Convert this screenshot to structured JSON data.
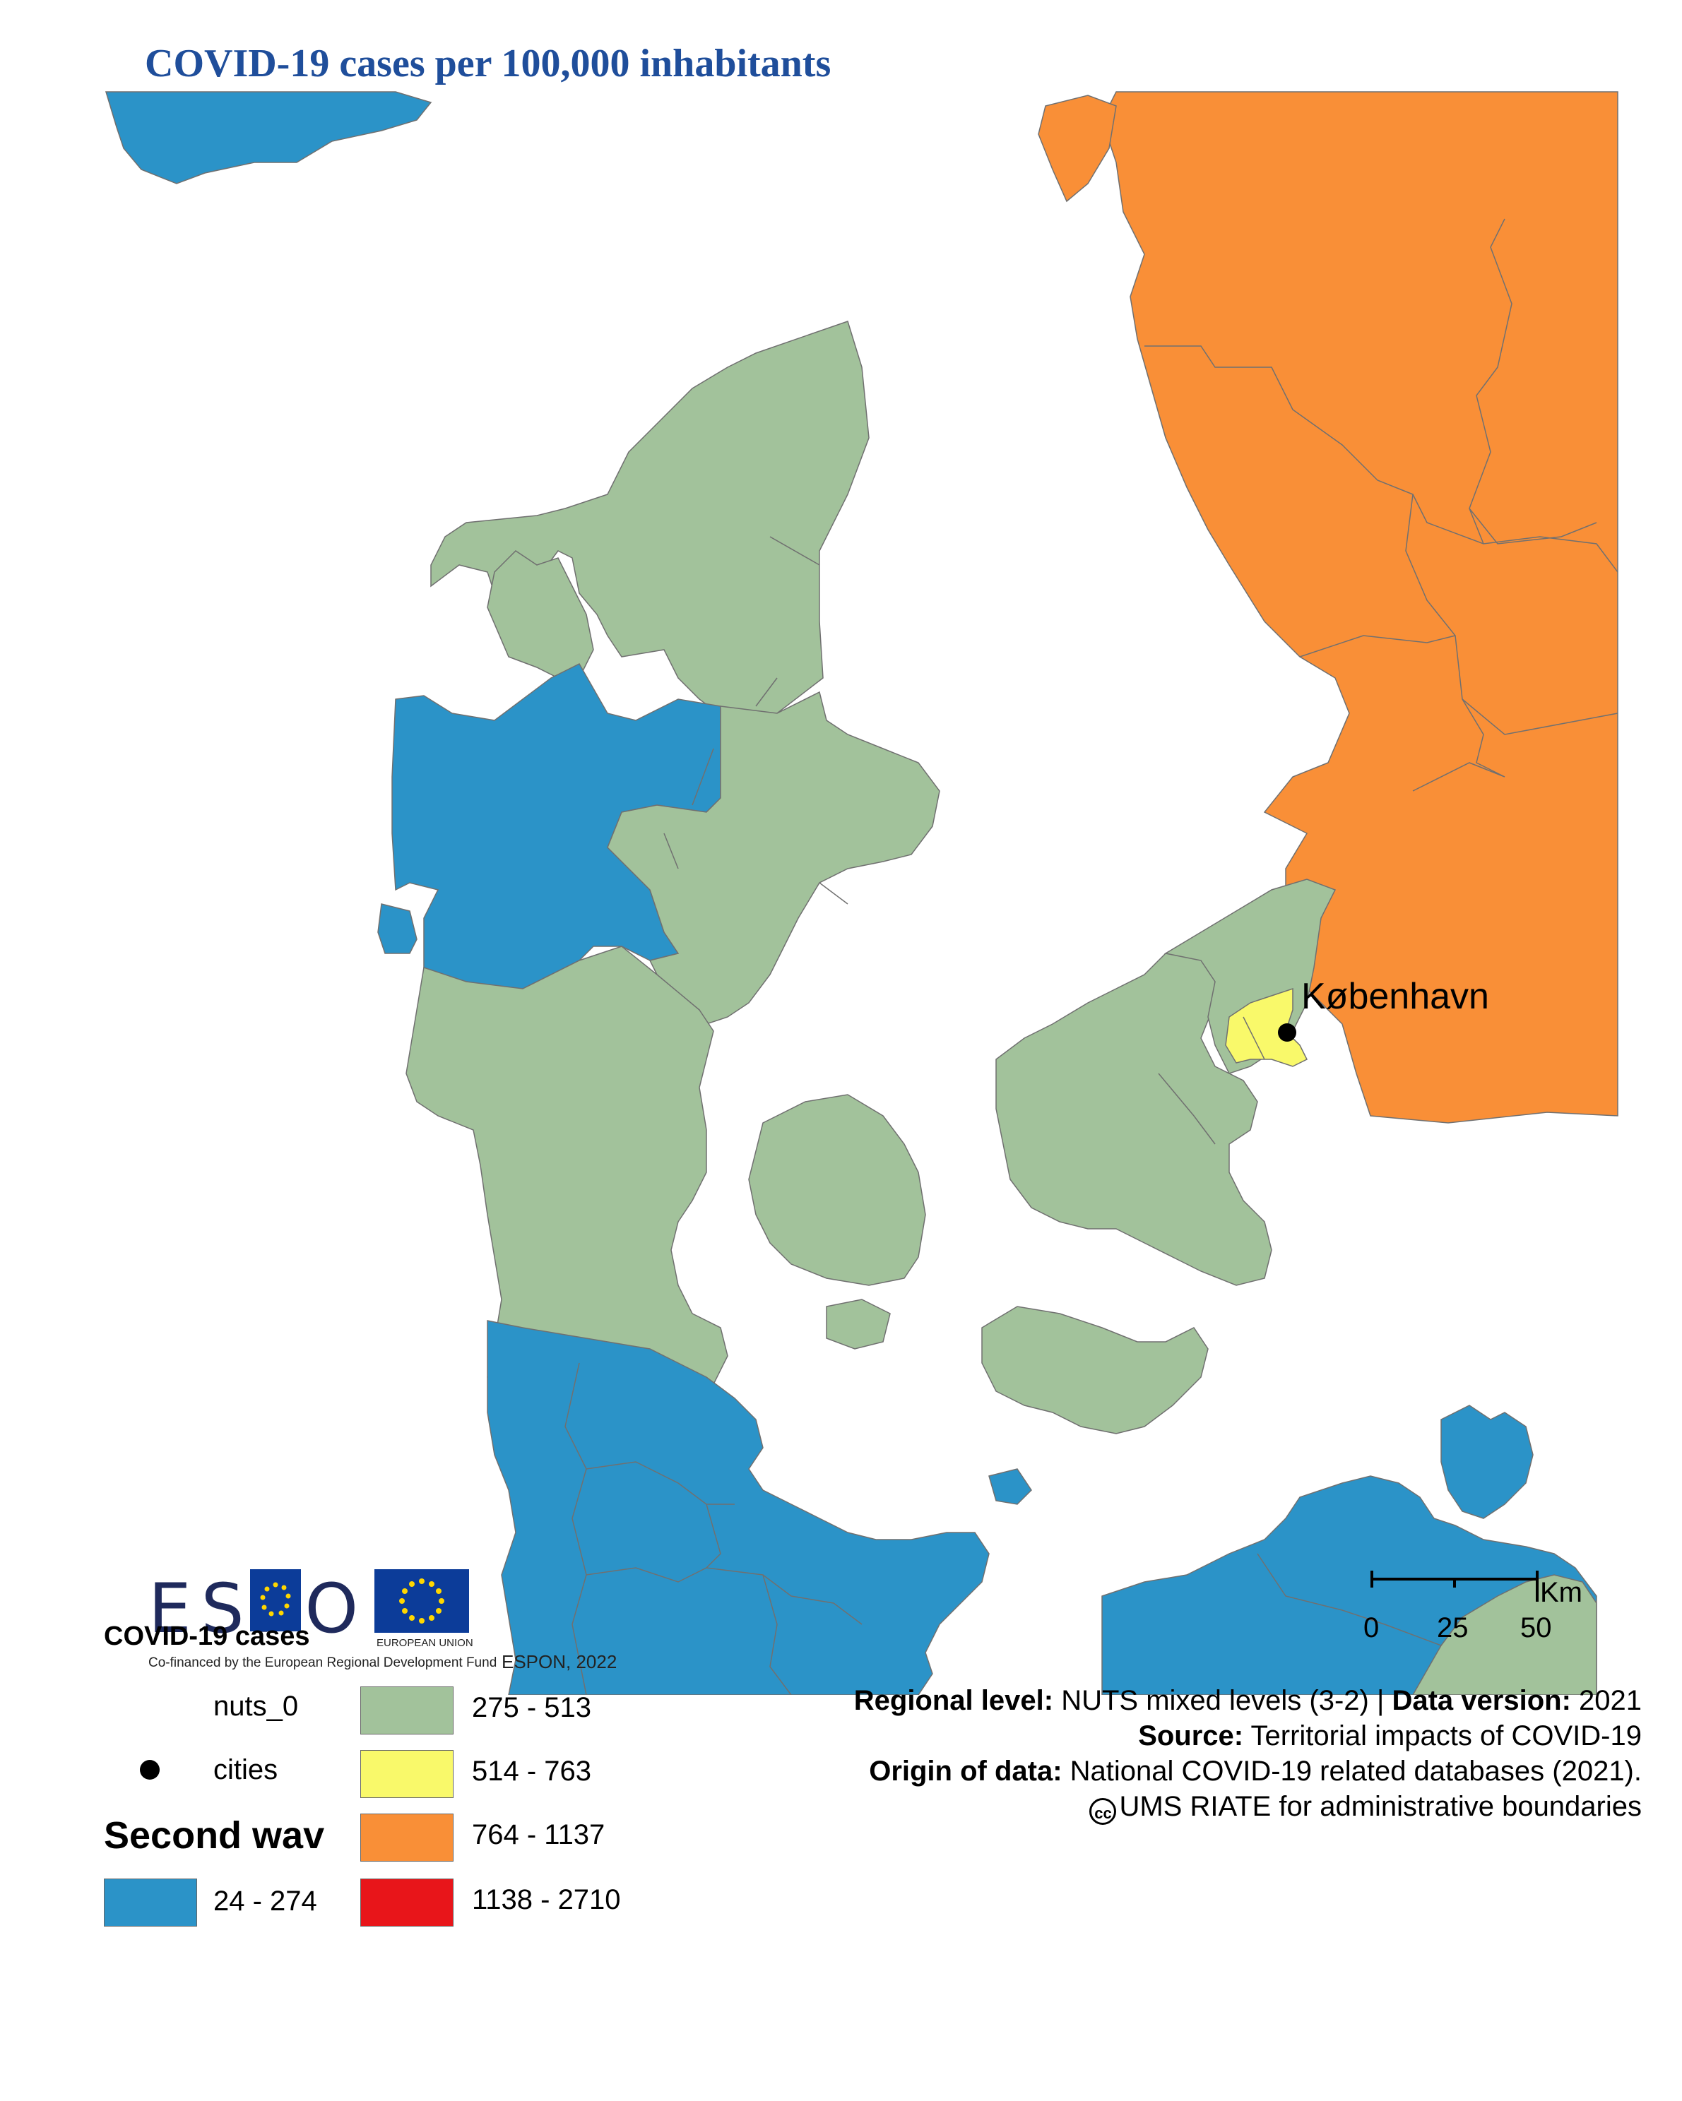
{
  "title": "COVID-19 cases per 100,000 inhabitants",
  "map": {
    "city_label": "København",
    "colors": {
      "blue": "#2b93c8",
      "green": "#a2c29b",
      "yellow": "#f9f96a",
      "orange": "#f98f37",
      "red": "#e8151a",
      "water": "#ffffff",
      "border": "#707070"
    },
    "scale_bar": {
      "unit": "Km",
      "ticks": [
        "0",
        "25",
        "50"
      ]
    }
  },
  "logos": {
    "espon_text": "ESPON",
    "cofinanced": "Co-financed by the European Regional Development Fund",
    "eu_label": "EUROPEAN UNION",
    "espon_year": "ESPON, 2022"
  },
  "legend": {
    "title": "COVID-19 cases",
    "nuts_label": "nuts_0",
    "cities_label": "cities",
    "wave_title": "Second wav",
    "classes": [
      {
        "label": "24 - 274",
        "color": "#2b93c8"
      },
      {
        "label": "275 - 513",
        "color": "#a2c29b"
      },
      {
        "label": "514 - 763",
        "color": "#f9f96a"
      },
      {
        "label": "764 - 1137",
        "color": "#f98f37"
      },
      {
        "label": "1138 - 2710",
        "color": "#e8151a"
      }
    ]
  },
  "metadata": {
    "regional_level_label": "Regional level:",
    "regional_level_value": "NUTS mixed levels (3-2) |",
    "data_version_label": "Data version:",
    "data_version_value": "2021",
    "source_label": "Source:",
    "source_value": "Territorial impacts of COVID-19",
    "origin_label": "Origin of data:",
    "origin_value": "National COVID-19 related databases (2021).",
    "cc_symbol": "cc",
    "copyright_value": "UMS RIATE for administrative boundaries"
  }
}
